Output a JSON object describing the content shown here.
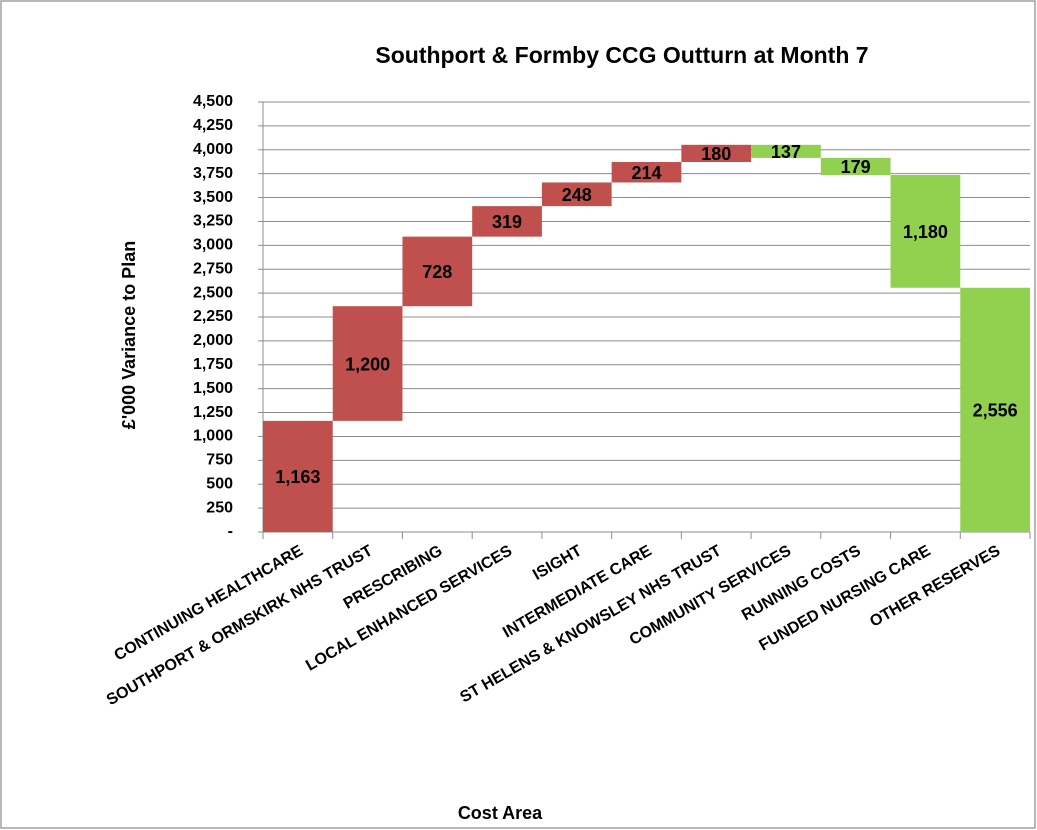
{
  "chart_data": {
    "type": "waterfall",
    "title": "Southport & Formby CCG Outturn at Month 7",
    "y_label": "£'000 Variance to Plan",
    "x_label": "Cost Area",
    "categories": [
      "CONTINUING HEALTHCARE",
      "SOUTHPORT & ORMSKIRK NHS TRUST",
      "PRESCRIBING",
      "LOCAL ENHANCED SERVICES",
      "ISIGHT",
      "INTERMEDIATE CARE",
      "ST HELENS & KNOWSLEY NHS TRUST",
      "COMMUNITY SERVICES",
      "RUNNING COSTS",
      "FUNDED NURSING CARE",
      "OTHER RESERVES"
    ],
    "values": [
      1163,
      1200,
      728,
      319,
      248,
      214,
      180,
      -137,
      -179,
      -1180,
      -2556
    ],
    "value_labels": [
      "1,163",
      "1,200",
      "728",
      "319",
      "248",
      "214",
      "180",
      "137",
      "179",
      "1,180",
      "2,556"
    ],
    "increase_color": "#c0504d",
    "decrease_color": "#92d050",
    "ylim": [
      0,
      4500
    ],
    "yticks": [
      {
        "value": 0,
        "label": "-"
      },
      250,
      500,
      750,
      {
        "value": 1000,
        "label": "1,000"
      },
      {
        "value": 1250,
        "label": "1,250"
      },
      {
        "value": 1500,
        "label": "1,500"
      },
      {
        "value": 1750,
        "label": "1,750"
      },
      {
        "value": 2000,
        "label": "2,000"
      },
      {
        "value": 2250,
        "label": "2,250"
      },
      {
        "value": 2500,
        "label": "2,500"
      },
      {
        "value": 2750,
        "label": "2,750"
      },
      {
        "value": 3000,
        "label": "3,000"
      },
      {
        "value": 3250,
        "label": "3,250"
      },
      {
        "value": 3500,
        "label": "3,500"
      },
      {
        "value": 3750,
        "label": "3,750"
      },
      {
        "value": 4000,
        "label": "4,000"
      },
      {
        "value": 4250,
        "label": "4,250"
      },
      {
        "value": 4500,
        "label": "4,500"
      }
    ],
    "grid": true
  }
}
